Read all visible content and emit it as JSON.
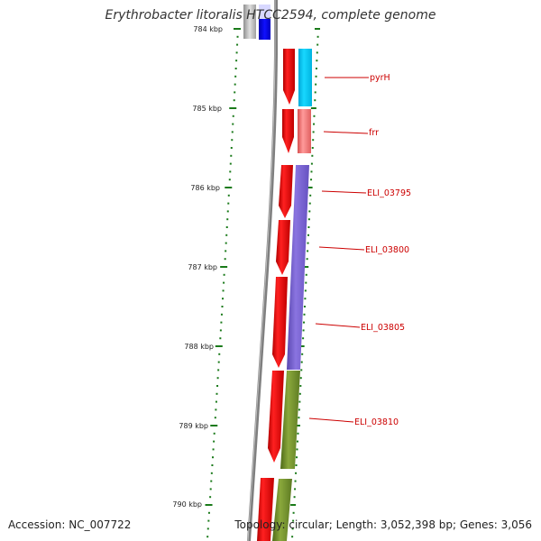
{
  "title": "Erythrobacter litoralis HTCC2594, complete genome",
  "footer": {
    "accession": "Accession: NC_007722",
    "stats": "Topology: circular; Length: 3,052,398 bp; Genes: 3,056"
  },
  "ruler_ticks": [
    "784 kbp",
    "785 kbp",
    "786 kbp",
    "787 kbp",
    "788 kbp",
    "789 kbp",
    "790 kbp"
  ],
  "gene_labels": [
    "pyrH",
    "frr",
    "ELI_03795",
    "ELI_03800",
    "ELI_03805",
    "ELI_03810"
  ],
  "colors": {
    "forward_strand": "#ee0000",
    "pyrH": "#00c8f0",
    "frr": "#f07070",
    "ELI_03795_to_ELI_03805": "#7a62cc",
    "ELI_03810": "#6f8f2a",
    "backbone": "#808080",
    "scale_dots": "#1a7a1a",
    "label_line": "#cc0000"
  }
}
